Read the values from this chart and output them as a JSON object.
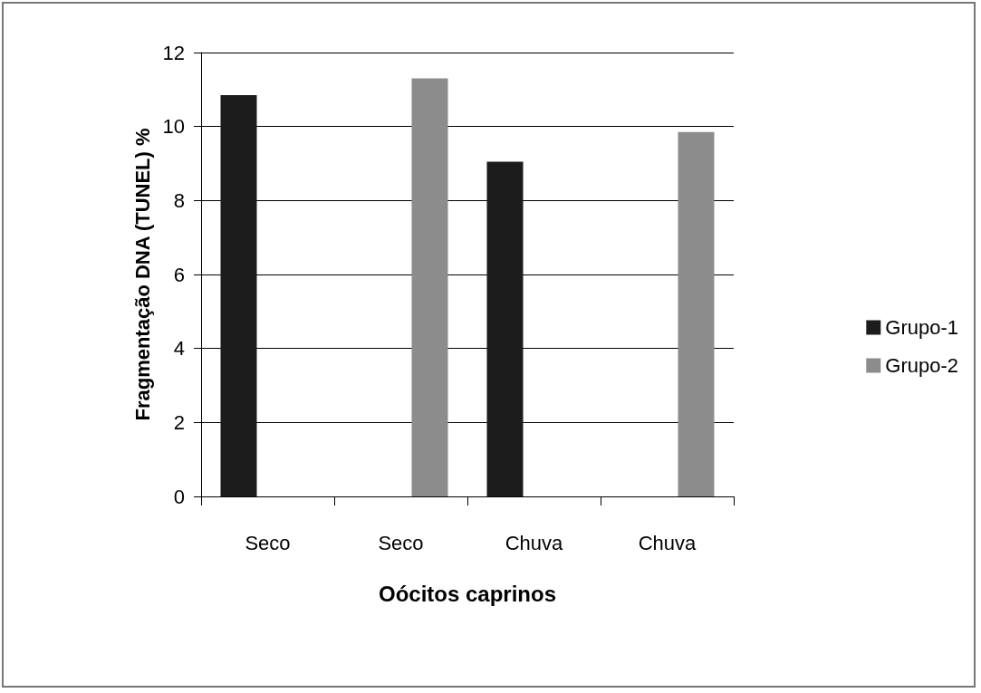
{
  "chart_data": {
    "type": "bar",
    "xlabel": "Oócitos caprinos",
    "ylabel": "Fragmentação DNA (TUNEL) %",
    "categories": [
      "Seco",
      "Seco",
      "Chuva",
      "Chuva"
    ],
    "series": [
      {
        "name": "Grupo-1",
        "color": "#1c1c1c",
        "values": [
          10.85,
          null,
          9.05,
          null
        ]
      },
      {
        "name": "Grupo-2",
        "color": "#8c8c8c",
        "values": [
          null,
          11.3,
          null,
          9.85
        ]
      }
    ],
    "ylim": [
      0,
      12
    ],
    "yticks": [
      0,
      2,
      4,
      6,
      8,
      10,
      12
    ],
    "grid": "y",
    "legend": "right"
  }
}
